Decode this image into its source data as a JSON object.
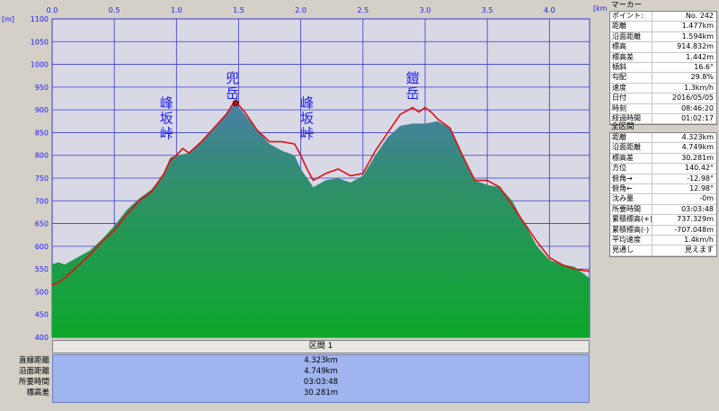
{
  "chart_data": {
    "type": "area",
    "xlabel_unit": "[km]",
    "ylabel_unit": "[m]",
    "xlim": [
      0,
      4.323
    ],
    "ylim": [
      400,
      1100
    ],
    "x_ticks": [
      "0.0",
      "0.5",
      "1.0",
      "1.5",
      "2.0",
      "2.5",
      "3.0",
      "3.5",
      "4.0"
    ],
    "y_ticks": [
      "1100",
      "1050",
      "1000",
      "950",
      "900",
      "850",
      "800",
      "750",
      "700",
      "650",
      "600",
      "550",
      "500",
      "450",
      "400"
    ],
    "grid": true,
    "series": [
      {
        "role": "terrain-area",
        "color": "#1e9a3c",
        "x": [
          0,
          0.05,
          0.1,
          0.2,
          0.3,
          0.4,
          0.5,
          0.6,
          0.7,
          0.8,
          0.9,
          0.95,
          1.0,
          1.1,
          1.2,
          1.3,
          1.4,
          1.47,
          1.55,
          1.65,
          1.75,
          1.85,
          1.95,
          2.0,
          2.1,
          2.2,
          2.3,
          2.4,
          2.5,
          2.6,
          2.7,
          2.8,
          2.9,
          3.0,
          3.1,
          3.2,
          3.3,
          3.4,
          3.5,
          3.6,
          3.7,
          3.8,
          3.9,
          4.0,
          4.1,
          4.2,
          4.323
        ],
        "y": [
          560,
          565,
          560,
          575,
          590,
          615,
          645,
          680,
          705,
          725,
          760,
          795,
          800,
          805,
          830,
          860,
          890,
          915,
          890,
          855,
          825,
          810,
          800,
          770,
          730,
          745,
          750,
          740,
          755,
          800,
          840,
          865,
          870,
          870,
          875,
          860,
          800,
          745,
          735,
          730,
          700,
          650,
          600,
          570,
          560,
          555,
          530
        ]
      },
      {
        "role": "gps-track",
        "color": "#e01010",
        "x": [
          0,
          0.05,
          0.1,
          0.2,
          0.3,
          0.4,
          0.5,
          0.6,
          0.7,
          0.8,
          0.9,
          0.95,
          1.0,
          1.05,
          1.1,
          1.2,
          1.3,
          1.4,
          1.47,
          1.55,
          1.65,
          1.75,
          1.85,
          1.95,
          2.0,
          2.05,
          2.1,
          2.2,
          2.3,
          2.4,
          2.5,
          2.6,
          2.7,
          2.8,
          2.9,
          2.95,
          3.0,
          3.05,
          3.1,
          3.2,
          3.3,
          3.4,
          3.5,
          3.6,
          3.7,
          3.8,
          3.9,
          4.0,
          4.1,
          4.2,
          4.323
        ],
        "y": [
          515,
          520,
          530,
          555,
          580,
          610,
          635,
          670,
          700,
          720,
          760,
          790,
          800,
          815,
          805,
          830,
          860,
          890,
          920,
          895,
          855,
          830,
          830,
          825,
          800,
          770,
          745,
          760,
          770,
          755,
          760,
          810,
          850,
          890,
          905,
          895,
          905,
          895,
          880,
          860,
          800,
          745,
          745,
          730,
          690,
          650,
          610,
          575,
          560,
          550,
          545
        ]
      }
    ],
    "annotations": [
      {
        "text": "峰坂峠",
        "x": 0.92,
        "y": 905
      },
      {
        "text": "兜岳",
        "x": 1.45,
        "y": 960
      },
      {
        "text": "峰坂峠",
        "x": 2.05,
        "y": 905
      },
      {
        "text": "鎧岳",
        "x": 2.9,
        "y": 960
      }
    ],
    "marker": {
      "x": 1.477,
      "y": 914.8
    }
  },
  "segment": {
    "title": "区間 1",
    "labels": [
      "直線距離",
      "沿面距離",
      "所要時間",
      "標高差"
    ],
    "values": [
      "4.323km",
      "4.749km",
      "03:03:48",
      "30.281m"
    ]
  },
  "marker_panel": {
    "title": "マーカー",
    "rows": [
      {
        "k": "ポイント:",
        "v": "No. 242"
      },
      {
        "k": "距離",
        "v": "1.477km"
      },
      {
        "k": "沿面距離",
        "v": "1.594km"
      },
      {
        "k": "標高",
        "v": "914.832m"
      },
      {
        "k": "標高差",
        "v": "1.442m"
      },
      {
        "k": "傾斜",
        "v": "16.6°"
      },
      {
        "k": "勾配",
        "v": "29.8%"
      },
      {
        "k": "速度",
        "v": "1.3km/h"
      },
      {
        "k": "日付",
        "v": "2016/05/05"
      },
      {
        "k": "時刻",
        "v": "08:46:20"
      },
      {
        "k": "経過時間",
        "v": "01:02:17"
      }
    ]
  },
  "total_panel": {
    "title": "全区間",
    "rows": [
      {
        "k": "距離",
        "v": "4.323km"
      },
      {
        "k": "沿面距離",
        "v": "4.749km"
      },
      {
        "k": "標高差",
        "v": "30.281m"
      },
      {
        "k": "方位",
        "v": "140.42°"
      },
      {
        "k": "俯角→",
        "v": "-12.98°"
      },
      {
        "k": "俯角←",
        "v": "12.98°"
      },
      {
        "k": "沈み量",
        "v": "-0m"
      },
      {
        "k": "所要時間",
        "v": "03:03:48"
      },
      {
        "k": "累積標高(+)",
        "v": "737.329m"
      },
      {
        "k": "累積標高(-)",
        "v": "-707.048m"
      },
      {
        "k": "平均速度",
        "v": "1.4km/h"
      },
      {
        "k": "見通し",
        "v": "見えます"
      }
    ]
  }
}
